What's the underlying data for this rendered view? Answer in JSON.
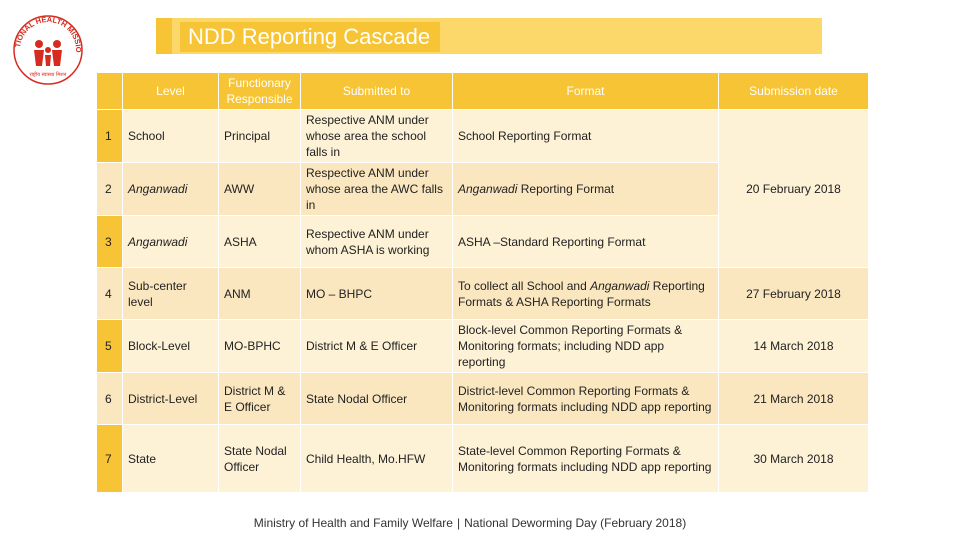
{
  "logo": {
    "text": "NATIONAL HEALTH MISSION",
    "sub": "राष्ट्रीय स्वास्थ्य मिशन",
    "icon": "nhm-logo-icon"
  },
  "title": "NDD Reporting Cascade",
  "table": {
    "headers": [
      "",
      "Level",
      "Functionary Responsible",
      "Submitted to",
      "Format",
      "Submission date"
    ],
    "rows": [
      {
        "num": "1",
        "level": "School",
        "functionary": "Principal",
        "submitted": "Respective ANM under whose area the school falls in",
        "format": "School Reporting Format"
      },
      {
        "num": "2",
        "level": "Anganwadi",
        "functionary": "AWW",
        "submitted": "Respective ANM under whose area the AWC falls in",
        "format_pre": "Anganwadi",
        "format_post": " Reporting Format"
      },
      {
        "num": "3",
        "level": "Anganwadi",
        "functionary": "ASHA",
        "submitted": "Respective ANM under whom  ASHA is working",
        "format": "ASHA –Standard Reporting Format"
      },
      {
        "num": "4",
        "level": "Sub-center level",
        "functionary": "ANM",
        "submitted": "MO – BHPC",
        "format_pre": "To collect all School and ",
        "format_em": "Anganwadi",
        "format_post": " Reporting Formats & ASHA Reporting Formats",
        "date": "27 February  2018"
      },
      {
        "num": "5",
        "level": "Block-Level",
        "functionary": "MO-BPHC",
        "submitted": "District M  & E Officer",
        "format": "Block-level Common Reporting Formats & Monitoring formats; including NDD app reporting",
        "date": "14 March 2018"
      },
      {
        "num": "6",
        "level": "District-Level",
        "functionary": "District M & E Officer",
        "submitted": "State Nodal Officer",
        "format": "District-level Common Reporting Formats & Monitoring formats including NDD app reporting",
        "date": "21 March 2018"
      },
      {
        "num": "7",
        "level": "State",
        "functionary": "State Nodal Officer",
        "submitted": "Child Health, Mo.HFW",
        "format": "State-level Common Reporting Formats & Monitoring formats including NDD app reporting",
        "date": "30 March 2018"
      }
    ],
    "merged_date": "20 February 2018"
  },
  "footer": {
    "left": "Ministry of Health and Family Welfare",
    "sep": "|",
    "right": "National Deworming Day (February 2018)"
  },
  "colors": {
    "header": "#f6c434",
    "row_light": "#fdf1d6",
    "row_dark": "#fbe7bf"
  }
}
